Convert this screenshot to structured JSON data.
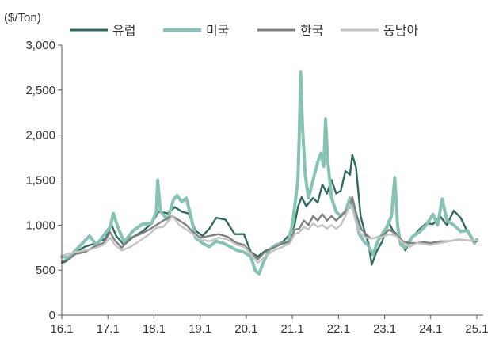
{
  "chart_data": {
    "type": "line",
    "unit_label": "($/Ton)",
    "ylim": [
      0,
      3000
    ],
    "yticks": [
      "0",
      "500",
      "1,000",
      "1,500",
      "2,000",
      "2,500",
      "3,000"
    ],
    "ytick_values": [
      0,
      500,
      1000,
      1500,
      2000,
      2500,
      3000
    ],
    "xlim": [
      2016.0,
      2025.0
    ],
    "xticks": [
      "16.1",
      "17.1",
      "18.1",
      "19.1",
      "20.1",
      "21.1",
      "22.1",
      "23.1",
      "24.1",
      "25.1"
    ],
    "xtick_values": [
      2016,
      2017,
      2018,
      2019,
      2020,
      2021,
      2022,
      2023,
      2024,
      2025
    ],
    "grid": false,
    "legend_position": "top",
    "series": [
      {
        "name": "유럽",
        "color": "#2e6b5f",
        "width": 2.4,
        "points": [
          [
            2016.0,
            580
          ],
          [
            2016.1,
            600
          ],
          [
            2016.25,
            680
          ],
          [
            2016.5,
            760
          ],
          [
            2016.75,
            800
          ],
          [
            2016.95,
            850
          ],
          [
            2017.08,
            1000
          ],
          [
            2017.18,
            880
          ],
          [
            2017.35,
            780
          ],
          [
            2017.55,
            870
          ],
          [
            2017.75,
            930
          ],
          [
            2017.95,
            1020
          ],
          [
            2018.1,
            1150
          ],
          [
            2018.3,
            1130
          ],
          [
            2018.45,
            1200
          ],
          [
            2018.6,
            1150
          ],
          [
            2018.75,
            1130
          ],
          [
            2018.9,
            940
          ],
          [
            2019.05,
            880
          ],
          [
            2019.2,
            960
          ],
          [
            2019.35,
            1080
          ],
          [
            2019.55,
            1060
          ],
          [
            2019.75,
            900
          ],
          [
            2019.95,
            900
          ],
          [
            2020.1,
            700
          ],
          [
            2020.25,
            650
          ],
          [
            2020.4,
            710
          ],
          [
            2020.6,
            760
          ],
          [
            2020.8,
            820
          ],
          [
            2020.95,
            900
          ],
          [
            2021.05,
            1000
          ],
          [
            2021.12,
            1200
          ],
          [
            2021.2,
            1310
          ],
          [
            2021.3,
            1210
          ],
          [
            2021.45,
            1300
          ],
          [
            2021.55,
            1250
          ],
          [
            2021.65,
            1450
          ],
          [
            2021.75,
            1350
          ],
          [
            2021.85,
            1500
          ],
          [
            2021.95,
            1350
          ],
          [
            2022.05,
            1380
          ],
          [
            2022.15,
            1600
          ],
          [
            2022.25,
            1560
          ],
          [
            2022.3,
            1780
          ],
          [
            2022.38,
            1640
          ],
          [
            2022.48,
            1100
          ],
          [
            2022.58,
            900
          ],
          [
            2022.65,
            800
          ],
          [
            2022.72,
            560
          ],
          [
            2022.82,
            700
          ],
          [
            2022.95,
            820
          ],
          [
            2023.08,
            1040
          ],
          [
            2023.18,
            940
          ],
          [
            2023.3,
            880
          ],
          [
            2023.45,
            720
          ],
          [
            2023.6,
            860
          ],
          [
            2023.75,
            950
          ],
          [
            2023.9,
            1020
          ],
          [
            2024.05,
            1010
          ],
          [
            2024.2,
            1100
          ],
          [
            2024.35,
            1000
          ],
          [
            2024.5,
            1160
          ],
          [
            2024.65,
            1080
          ],
          [
            2024.8,
            920
          ],
          [
            2024.95,
            800
          ],
          [
            2025.0,
            830
          ]
        ]
      },
      {
        "name": "미국",
        "color": "#86c3b4",
        "width": 4,
        "points": [
          [
            2016.0,
            650
          ],
          [
            2016.15,
            640
          ],
          [
            2016.3,
            720
          ],
          [
            2016.45,
            800
          ],
          [
            2016.6,
            880
          ],
          [
            2016.75,
            780
          ],
          [
            2016.9,
            880
          ],
          [
            2017.05,
            980
          ],
          [
            2017.12,
            1130
          ],
          [
            2017.2,
            1000
          ],
          [
            2017.35,
            810
          ],
          [
            2017.55,
            940
          ],
          [
            2017.75,
            1010
          ],
          [
            2017.95,
            1020
          ],
          [
            2018.05,
            1150
          ],
          [
            2018.08,
            1500
          ],
          [
            2018.14,
            1150
          ],
          [
            2018.3,
            1060
          ],
          [
            2018.42,
            1280
          ],
          [
            2018.5,
            1330
          ],
          [
            2018.6,
            1260
          ],
          [
            2018.7,
            1300
          ],
          [
            2018.8,
            1100
          ],
          [
            2018.9,
            860
          ],
          [
            2019.05,
            800
          ],
          [
            2019.2,
            760
          ],
          [
            2019.35,
            820
          ],
          [
            2019.5,
            800
          ],
          [
            2019.65,
            760
          ],
          [
            2019.8,
            720
          ],
          [
            2019.95,
            700
          ],
          [
            2020.1,
            650
          ],
          [
            2020.2,
            490
          ],
          [
            2020.28,
            460
          ],
          [
            2020.35,
            560
          ],
          [
            2020.5,
            730
          ],
          [
            2020.65,
            780
          ],
          [
            2020.8,
            800
          ],
          [
            2020.9,
            800
          ],
          [
            2021.0,
            1000
          ],
          [
            2021.05,
            1200
          ],
          [
            2021.12,
            1500
          ],
          [
            2021.15,
            2000
          ],
          [
            2021.18,
            2700
          ],
          [
            2021.22,
            2100
          ],
          [
            2021.28,
            1550
          ],
          [
            2021.35,
            1300
          ],
          [
            2021.45,
            1500
          ],
          [
            2021.55,
            1700
          ],
          [
            2021.62,
            1800
          ],
          [
            2021.68,
            1650
          ],
          [
            2021.72,
            2180
          ],
          [
            2021.77,
            1700
          ],
          [
            2021.85,
            1300
          ],
          [
            2021.95,
            1150
          ],
          [
            2022.05,
            1100
          ],
          [
            2022.15,
            1150
          ],
          [
            2022.25,
            1300
          ],
          [
            2022.35,
            1150
          ],
          [
            2022.45,
            900
          ],
          [
            2022.55,
            820
          ],
          [
            2022.65,
            770
          ],
          [
            2022.75,
            670
          ],
          [
            2022.85,
            820
          ],
          [
            2022.95,
            900
          ],
          [
            2023.05,
            980
          ],
          [
            2023.15,
            1100
          ],
          [
            2023.22,
            1530
          ],
          [
            2023.28,
            1000
          ],
          [
            2023.35,
            780
          ],
          [
            2023.45,
            750
          ],
          [
            2023.6,
            870
          ],
          [
            2023.75,
            920
          ],
          [
            2023.9,
            1000
          ],
          [
            2024.05,
            1120
          ],
          [
            2024.15,
            1000
          ],
          [
            2024.25,
            1290
          ],
          [
            2024.35,
            1050
          ],
          [
            2024.5,
            1000
          ],
          [
            2024.65,
            930
          ],
          [
            2024.8,
            940
          ],
          [
            2024.95,
            800
          ],
          [
            2025.0,
            840
          ]
        ]
      },
      {
        "name": "한국",
        "color": "#808080",
        "width": 2.4,
        "points": [
          [
            2016.0,
            600
          ],
          [
            2016.15,
            620
          ],
          [
            2016.3,
            680
          ],
          [
            2016.5,
            700
          ],
          [
            2016.7,
            760
          ],
          [
            2016.9,
            800
          ],
          [
            2017.05,
            920
          ],
          [
            2017.15,
            830
          ],
          [
            2017.3,
            750
          ],
          [
            2017.5,
            860
          ],
          [
            2017.7,
            900
          ],
          [
            2017.9,
            950
          ],
          [
            2018.05,
            1000
          ],
          [
            2018.2,
            1050
          ],
          [
            2018.4,
            1100
          ],
          [
            2018.55,
            1050
          ],
          [
            2018.7,
            1000
          ],
          [
            2018.85,
            920
          ],
          [
            2019.0,
            860
          ],
          [
            2019.2,
            880
          ],
          [
            2019.4,
            900
          ],
          [
            2019.6,
            870
          ],
          [
            2019.8,
            800
          ],
          [
            2019.95,
            780
          ],
          [
            2020.1,
            700
          ],
          [
            2020.25,
            620
          ],
          [
            2020.4,
            700
          ],
          [
            2020.6,
            750
          ],
          [
            2020.8,
            800
          ],
          [
            2020.95,
            820
          ],
          [
            2021.05,
            950
          ],
          [
            2021.15,
            960
          ],
          [
            2021.25,
            1050
          ],
          [
            2021.35,
            1000
          ],
          [
            2021.45,
            1100
          ],
          [
            2021.55,
            1050
          ],
          [
            2021.65,
            1120
          ],
          [
            2021.75,
            1050
          ],
          [
            2021.85,
            1100
          ],
          [
            2021.95,
            1050
          ],
          [
            2022.05,
            1100
          ],
          [
            2022.15,
            1150
          ],
          [
            2022.25,
            1200
          ],
          [
            2022.3,
            1310
          ],
          [
            2022.4,
            1100
          ],
          [
            2022.5,
            950
          ],
          [
            2022.6,
            900
          ],
          [
            2022.7,
            850
          ],
          [
            2022.8,
            860
          ],
          [
            2022.95,
            880
          ],
          [
            2023.1,
            950
          ],
          [
            2023.25,
            900
          ],
          [
            2023.4,
            820
          ],
          [
            2023.55,
            800
          ],
          [
            2023.7,
            800
          ],
          [
            2023.85,
            810
          ],
          [
            2024.0,
            800
          ],
          [
            2024.2,
            820
          ],
          [
            2024.4,
            820
          ],
          [
            2024.6,
            840
          ],
          [
            2024.8,
            830
          ],
          [
            2025.0,
            820
          ]
        ]
      },
      {
        "name": "동남아",
        "color": "#c4c4c4",
        "width": 2.4,
        "points": [
          [
            2016.0,
            660
          ],
          [
            2016.15,
            680
          ],
          [
            2016.3,
            700
          ],
          [
            2016.5,
            720
          ],
          [
            2016.7,
            740
          ],
          [
            2016.9,
            780
          ],
          [
            2017.05,
            860
          ],
          [
            2017.15,
            780
          ],
          [
            2017.3,
            720
          ],
          [
            2017.5,
            760
          ],
          [
            2017.7,
            830
          ],
          [
            2017.9,
            900
          ],
          [
            2018.05,
            970
          ],
          [
            2018.2,
            980
          ],
          [
            2018.4,
            1100
          ],
          [
            2018.55,
            1000
          ],
          [
            2018.7,
            950
          ],
          [
            2018.85,
            900
          ],
          [
            2019.0,
            840
          ],
          [
            2019.2,
            820
          ],
          [
            2019.4,
            860
          ],
          [
            2019.6,
            840
          ],
          [
            2019.8,
            780
          ],
          [
            2019.95,
            760
          ],
          [
            2020.1,
            680
          ],
          [
            2020.25,
            580
          ],
          [
            2020.4,
            650
          ],
          [
            2020.6,
            720
          ],
          [
            2020.8,
            760
          ],
          [
            2020.95,
            800
          ],
          [
            2021.05,
            900
          ],
          [
            2021.15,
            920
          ],
          [
            2021.25,
            980
          ],
          [
            2021.35,
            950
          ],
          [
            2021.45,
            1020
          ],
          [
            2021.55,
            980
          ],
          [
            2021.65,
            1000
          ],
          [
            2021.75,
            960
          ],
          [
            2021.85,
            1000
          ],
          [
            2021.95,
            960
          ],
          [
            2022.05,
            1000
          ],
          [
            2022.15,
            1100
          ],
          [
            2022.25,
            1230
          ],
          [
            2022.32,
            1150
          ],
          [
            2022.42,
            950
          ],
          [
            2022.5,
            900
          ],
          [
            2022.6,
            860
          ],
          [
            2022.7,
            850
          ],
          [
            2022.8,
            860
          ],
          [
            2022.95,
            870
          ],
          [
            2023.1,
            900
          ],
          [
            2023.25,
            880
          ],
          [
            2023.4,
            800
          ],
          [
            2023.55,
            760
          ],
          [
            2023.7,
            800
          ],
          [
            2023.85,
            790
          ],
          [
            2024.0,
            780
          ],
          [
            2024.2,
            800
          ],
          [
            2024.4,
            820
          ],
          [
            2024.6,
            840
          ],
          [
            2024.8,
            830
          ],
          [
            2025.0,
            830
          ]
        ]
      }
    ]
  }
}
